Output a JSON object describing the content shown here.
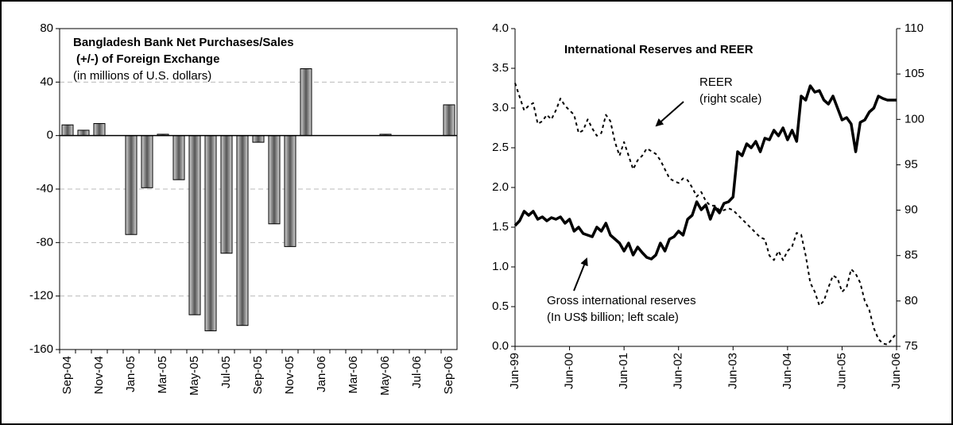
{
  "chart_data": [
    {
      "type": "bar",
      "title": [
        "Bangladesh Bank Net Purchases/Sales",
        "(+/-) of Foreign Exchange"
      ],
      "subtitle": "(in millions of U.S. dollars)",
      "categories": [
        "Sep-04",
        null,
        "Nov-04",
        null,
        "Jan-05",
        null,
        "Mar-05",
        null,
        "May-05",
        null,
        "Jul-05",
        null,
        "Sep-05",
        null,
        "Nov-05",
        null,
        "Jan-06",
        null,
        "Mar-06",
        null,
        "May-06",
        null,
        "Jul-06",
        null,
        "Sep-06"
      ],
      "values": [
        8,
        4,
        9,
        0,
        -74,
        -39,
        1,
        -33,
        -134,
        -146,
        -88,
        -142,
        -5,
        -66,
        -83,
        50,
        0,
        0,
        0,
        0,
        1,
        0,
        0,
        0,
        23
      ],
      "color": "#555555",
      "ylim": [
        -160,
        80
      ],
      "yticks": [
        -160,
        -120,
        -80,
        -40,
        0,
        40,
        80
      ],
      "grid": true
    },
    {
      "type": "line",
      "title": "International Reserves and REER",
      "categories": [
        "Jun-99",
        null,
        null,
        null,
        null,
        null,
        null,
        null,
        null,
        null,
        null,
        null,
        "Jun-00",
        null,
        null,
        null,
        null,
        null,
        null,
        null,
        null,
        null,
        null,
        null,
        "Jun-01",
        null,
        null,
        null,
        null,
        null,
        null,
        null,
        null,
        null,
        null,
        null,
        "Jun-02",
        null,
        null,
        null,
        null,
        null,
        null,
        null,
        null,
        null,
        null,
        null,
        "Jun-03",
        null,
        null,
        null,
        null,
        null,
        null,
        null,
        null,
        null,
        null,
        null,
        "Jun-04",
        null,
        null,
        null,
        null,
        null,
        null,
        null,
        null,
        null,
        null,
        null,
        "Jun-05",
        null,
        null,
        null,
        null,
        null,
        null,
        null,
        null,
        null,
        null,
        null,
        "Jun-06"
      ],
      "series": [
        {
          "name": "Gross international reserves",
          "color": "#000000",
          "style": "solid",
          "values": [
            1.52,
            1.58,
            1.7,
            1.65,
            1.7,
            1.6,
            1.63,
            1.58,
            1.62,
            1.6,
            1.63,
            1.55,
            1.6,
            1.45,
            1.5,
            1.42,
            1.4,
            1.38,
            1.5,
            1.45,
            1.55,
            1.4,
            1.35,
            1.3,
            1.2,
            1.3,
            1.15,
            1.25,
            1.18,
            1.12,
            1.1,
            1.15,
            1.3,
            1.2,
            1.35,
            1.38,
            1.45,
            1.4,
            1.6,
            1.65,
            1.82,
            1.72,
            1.78,
            1.6,
            1.75,
            1.68,
            1.8,
            1.82,
            1.88,
            2.45,
            2.4,
            2.55,
            2.5,
            2.58,
            2.45,
            2.62,
            2.6,
            2.72,
            2.65,
            2.75,
            2.6,
            2.72,
            2.58,
            3.15,
            3.1,
            3.28,
            3.2,
            3.22,
            3.1,
            3.05,
            3.15,
            3.0,
            2.85,
            2.88,
            2.8,
            2.45,
            2.82,
            2.85,
            2.95,
            3.0,
            3.15,
            3.12,
            3.1,
            3.1,
            3.1
          ]
        },
        {
          "name": "REER",
          "color": "#000000",
          "style": "dotted",
          "axis": "y2",
          "values": [
            104,
            102.5,
            101,
            101.5,
            101.8,
            99.5,
            99.8,
            100.5,
            100,
            101,
            102.3,
            101.5,
            101,
            100.5,
            98.5,
            98.8,
            100,
            99,
            98.2,
            98.5,
            100.5,
            99.8,
            97.5,
            96,
            97.5,
            96,
            94.5,
            95.5,
            96,
            96.8,
            96.5,
            96.2,
            95.5,
            94.5,
            93.5,
            93.2,
            93,
            93.5,
            93.3,
            92.5,
            91.5,
            92,
            91,
            90.5,
            90.5,
            90,
            90,
            90.2,
            90,
            89.5,
            89,
            88.5,
            88,
            87.5,
            87,
            86.8,
            85,
            84.5,
            85.5,
            84.5,
            85.5,
            86,
            87.5,
            87.3,
            85,
            82,
            81,
            79.5,
            80,
            81.5,
            82.8,
            82.5,
            81,
            81.5,
            83.5,
            83,
            82,
            80,
            79,
            77,
            75.8,
            75.3,
            75.2,
            75.8,
            76.5
          ]
        }
      ],
      "annotations": [
        "REER",
        "(right scale)",
        "Gross international reserves",
        "(In US$ billion; left scale)"
      ],
      "ylim": [
        0,
        4
      ],
      "yticks": [
        {
          "value": 0,
          "label": "0.0"
        },
        0.5,
        {
          "value": 1,
          "label": "1.0"
        },
        1.5,
        {
          "value": 2,
          "label": "2.0"
        },
        2.5,
        {
          "value": 3,
          "label": "3.0"
        },
        3.5,
        {
          "value": 4,
          "label": "4.0"
        }
      ],
      "y2lim": [
        75,
        110
      ],
      "y2ticks": [
        75,
        80,
        85,
        90,
        95,
        100,
        105,
        110
      ],
      "grid": false
    }
  ]
}
